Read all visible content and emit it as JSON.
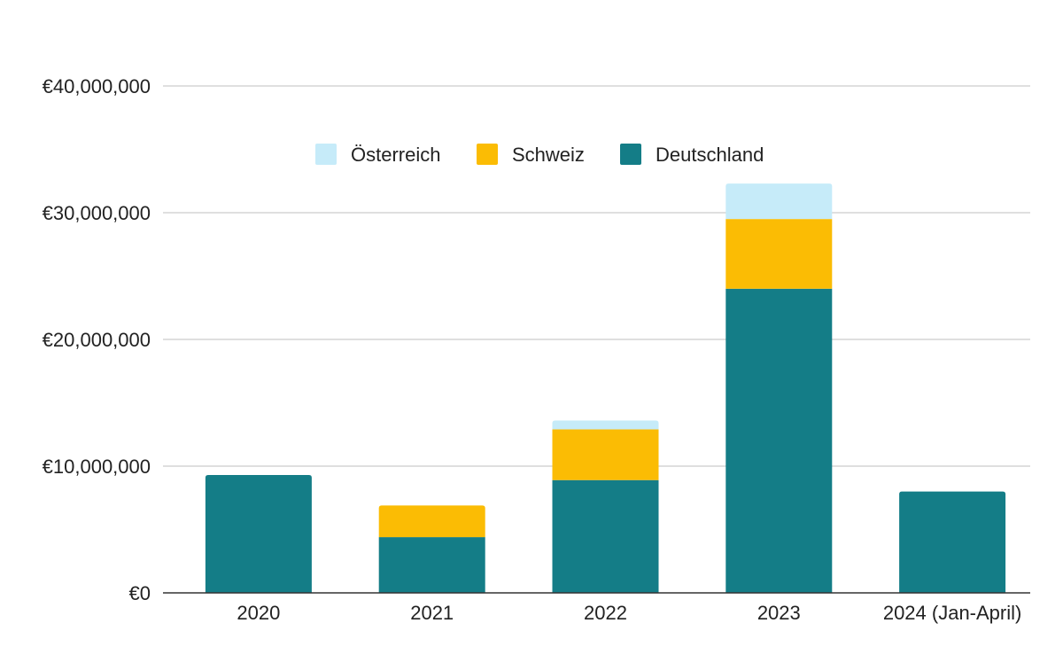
{
  "chart_data": {
    "type": "bar",
    "stacked": true,
    "categories": [
      "2020",
      "2021",
      "2022",
      "2023",
      "2024 (Jan-April)"
    ],
    "series": [
      {
        "name": "Deutschland",
        "color": "#147d87",
        "values": [
          9300000,
          4400000,
          8900000,
          24000000,
          8000000
        ]
      },
      {
        "name": "Schweiz",
        "color": "#fbbc04",
        "values": [
          0,
          2500000,
          4000000,
          5500000,
          0
        ]
      },
      {
        "name": "Österreich",
        "color": "#c6ebf9",
        "values": [
          0,
          0,
          700000,
          2800000,
          0
        ]
      }
    ],
    "legend_order": [
      "Österreich",
      "Schweiz",
      "Deutschland"
    ],
    "legend_position": "top-center",
    "ylim": [
      0,
      40000000
    ],
    "yticks": [
      0,
      10000000,
      20000000,
      30000000,
      40000000
    ],
    "ytick_labels": [
      "€0",
      "€10,000,000",
      "€20,000,000",
      "€30,000,000",
      "€40,000,000"
    ],
    "grid": true
  }
}
